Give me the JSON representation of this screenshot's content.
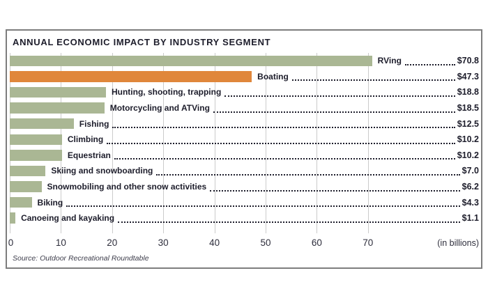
{
  "chart_data": {
    "type": "bar",
    "orientation": "horizontal",
    "title": "ANNUAL ECONOMIC IMPACT BY INDUSTRY SEGMENT",
    "unit_note": "(in billions)",
    "source": "Source: Outdoor Recreational Roundtable",
    "xlim": [
      0,
      70
    ],
    "x_ticks": [
      0,
      10,
      20,
      30,
      40,
      50,
      60,
      70
    ],
    "grid": true,
    "categories": [
      "RVing",
      "Boating",
      "Hunting, shooting, trapping",
      "Motorcycling and ATVing",
      "Fishing",
      "Climbing",
      "Equestrian",
      "Skiing and snowboarding",
      "Snowmobiling and other snow activities",
      "Biking",
      "Canoeing and kayaking"
    ],
    "values": [
      70.8,
      47.3,
      18.8,
      18.5,
      12.5,
      10.2,
      10.2,
      7.0,
      6.2,
      4.3,
      1.1
    ],
    "rows": [
      {
        "label": "RVing",
        "value": 70.8,
        "value_label": "$70.8",
        "highlight": false
      },
      {
        "label": "Boating",
        "value": 47.3,
        "value_label": "$47.3",
        "highlight": true
      },
      {
        "label": "Hunting, shooting, trapping",
        "value": 18.8,
        "value_label": "$18.8",
        "highlight": false
      },
      {
        "label": "Motorcycling and ATVing",
        "value": 18.5,
        "value_label": "$18.5",
        "highlight": false
      },
      {
        "label": "Fishing",
        "value": 12.5,
        "value_label": "$12.5",
        "highlight": false
      },
      {
        "label": "Climbing",
        "value": 10.2,
        "value_label": "$10.2",
        "highlight": false
      },
      {
        "label": "Equestrian",
        "value": 10.2,
        "value_label": "$10.2",
        "highlight": false
      },
      {
        "label": "Skiing and snowboarding",
        "value": 7.0,
        "value_label": "$7.0",
        "highlight": false
      },
      {
        "label": "Snowmobiling and other snow activities",
        "value": 6.2,
        "value_label": "$6.2",
        "highlight": false
      },
      {
        "label": "Biking",
        "value": 4.3,
        "value_label": "$4.3",
        "highlight": false
      },
      {
        "label": "Canoeing and kayaking",
        "value": 1.1,
        "value_label": "$1.1",
        "highlight": false
      }
    ],
    "colors": {
      "bar_default": "#aab794",
      "bar_highlight": "#e0873b",
      "grid": "#cbcbcb",
      "text": "#1d1d2b",
      "border": "#7d7d7d"
    },
    "legend": "none"
  }
}
